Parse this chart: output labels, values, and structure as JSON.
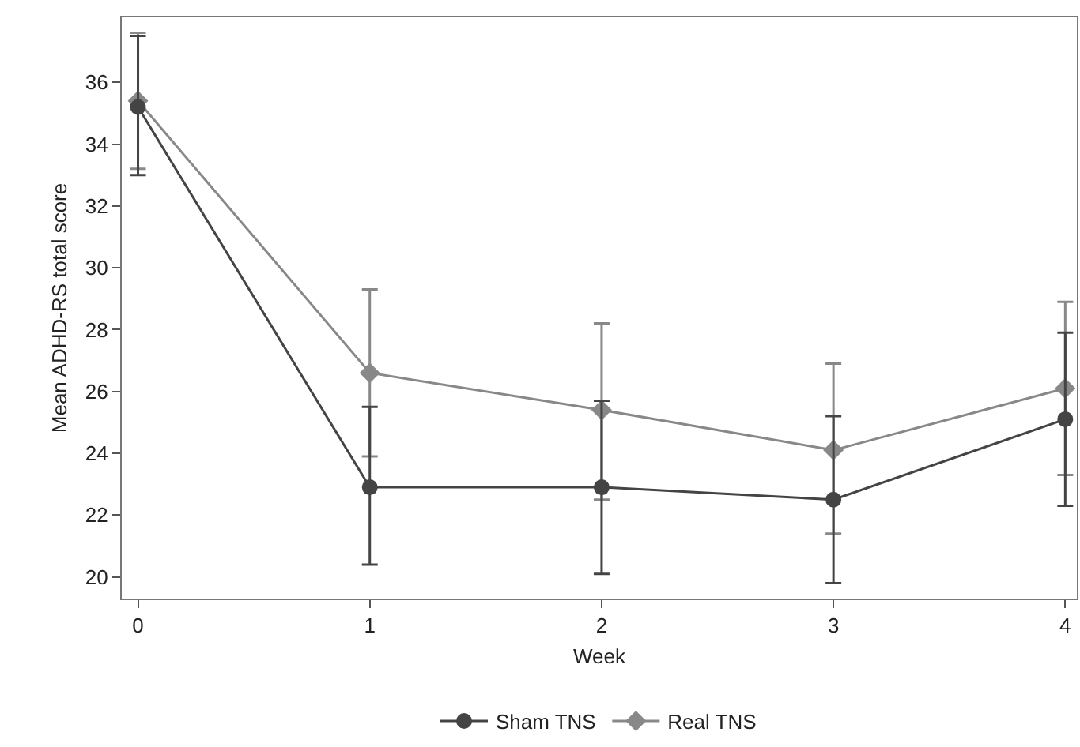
{
  "chart_data": {
    "type": "line",
    "xlabel": "Week",
    "ylabel": "Mean ADHD-RS total score",
    "x": [
      0,
      1,
      2,
      3,
      4
    ],
    "series": [
      {
        "name": "Sham TNS",
        "color": "#444444",
        "marker": "circle",
        "values": [
          35.2,
          22.9,
          22.9,
          22.5,
          25.1
        ],
        "errors": [
          [
            33.0,
            37.5
          ],
          [
            20.4,
            25.5
          ],
          [
            20.1,
            25.7
          ],
          [
            19.8,
            25.2
          ],
          [
            22.3,
            27.9
          ]
        ]
      },
      {
        "name": "Real TNS",
        "color": "#888888",
        "marker": "diamond",
        "values": [
          35.4,
          26.6,
          25.4,
          24.1,
          26.1
        ],
        "errors": [
          [
            33.2,
            37.6
          ],
          [
            23.9,
            29.3
          ],
          [
            22.5,
            28.2
          ],
          [
            21.4,
            26.9
          ],
          [
            23.3,
            28.9
          ]
        ]
      }
    ],
    "xlim": [
      -0.07,
      4.05
    ],
    "ylim": [
      19.3,
      38.1
    ],
    "xticks": [
      0,
      1,
      2,
      3,
      4
    ],
    "yticks": [
      20,
      22,
      24,
      26,
      28,
      30,
      32,
      34,
      36
    ],
    "grid": false,
    "legend": "bottom",
    "line_style": "solid"
  }
}
